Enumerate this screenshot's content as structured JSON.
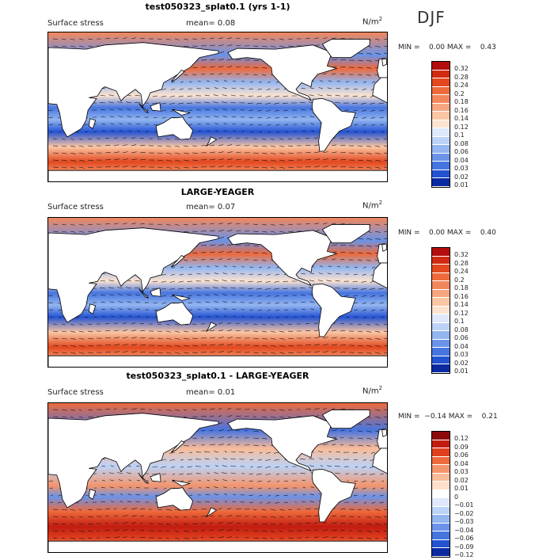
{
  "season": "DJF",
  "colors": {
    "land": "#ffffff",
    "coast": "#000000"
  },
  "panels": [
    {
      "title": "test050323_splat0.1 (yrs 1-1)",
      "field": "Surface stress",
      "mean": "mean=   0.08",
      "unit": "N/m",
      "unit_exp": "2",
      "minmax": "MIN =    0.00 MAX =    0.43",
      "colorbar": [
        "0.32",
        "0.28",
        "0.24",
        "0.2",
        "0.18",
        "0.16",
        "0.14",
        "0.12",
        "0.1",
        "0.08",
        "0.06",
        "0.04",
        "0.03",
        "0.02",
        "0.01"
      ],
      "palette": [
        "#b40d0d",
        "#d02b10",
        "#e3481f",
        "#ee6a3c",
        "#f2875c",
        "#f6a67e",
        "#fac6a4",
        "#fde3cf",
        "#dfe9fb",
        "#bcd2f6",
        "#93b5f0",
        "#6a93e9",
        "#4675e0",
        "#2453d2",
        "#0a2aa0"
      ]
    },
    {
      "title": "LARGE-YEAGER",
      "field": "Surface stress",
      "mean": "mean=   0.07",
      "unit": "N/m",
      "unit_exp": "2",
      "minmax": "MIN =    0.00 MAX =    0.40",
      "colorbar": [
        "0.32",
        "0.28",
        "0.24",
        "0.2",
        "0.18",
        "0.16",
        "0.14",
        "0.12",
        "0.1",
        "0.08",
        "0.06",
        "0.04",
        "0.03",
        "0.02",
        "0.01"
      ],
      "palette": [
        "#b40d0d",
        "#d02b10",
        "#e3481f",
        "#ee6a3c",
        "#f2875c",
        "#f6a67e",
        "#fac6a4",
        "#fde3cf",
        "#dfe9fb",
        "#bcd2f6",
        "#93b5f0",
        "#6a93e9",
        "#4675e0",
        "#2453d2",
        "#0a2aa0"
      ]
    },
    {
      "title": "test050323_splat0.1 - LARGE-YEAGER",
      "field": "Surface stress",
      "mean": "mean=   0.01",
      "unit": "N/m",
      "unit_exp": "2",
      "minmax": "MIN =  −0.14 MAX =    0.21",
      "colorbar": [
        "0.12",
        "0.09",
        "0.06",
        "0.04",
        "0.03",
        "0.02",
        "0.01",
        "0",
        "−0.01",
        "−0.02",
        "−0.03",
        "−0.04",
        "−0.06",
        "−0.09",
        "−0.12"
      ],
      "palette": [
        "#8c0a0a",
        "#c21c10",
        "#e0401e",
        "#ee6a3c",
        "#f4946b",
        "#f9bb98",
        "#fde0cc",
        "#ffffff",
        "#dfe9fb",
        "#bcd2f6",
        "#93b5f0",
        "#6a93e9",
        "#4675e0",
        "#2453d2",
        "#0a2aa0"
      ]
    }
  ]
}
